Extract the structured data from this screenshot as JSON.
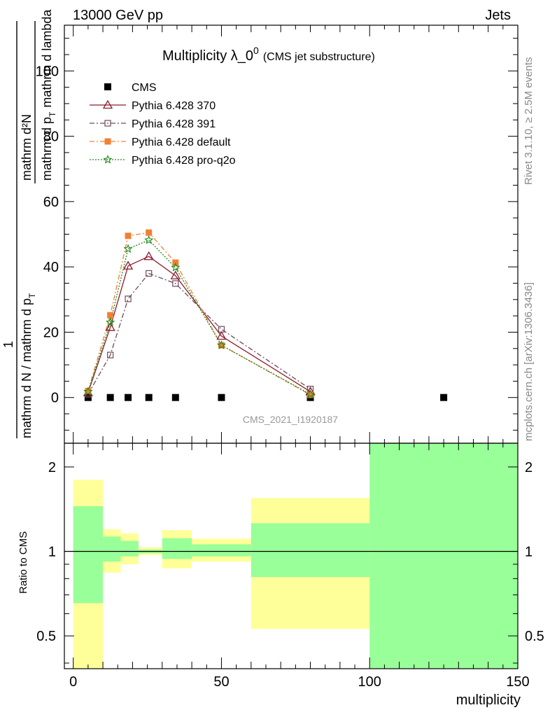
{
  "header": {
    "left": "13000 GeV pp",
    "right": "Jets"
  },
  "side_labels": {
    "rivet": "Rivet 3.1.10, ≥ 2.5M events",
    "mcplots": "mcplots.cern.ch [arXiv:1306.3436]"
  },
  "analysis_tag": "CMS_2021_I1920187",
  "title": {
    "main": "Multiplicity λ_0",
    "sup": "0",
    "sub": "(CMS jet substructure)"
  },
  "ylabel_top": {
    "numerator": "mathrm d²N",
    "line1": "1",
    "line2": "mathrm d N / mathrm d p",
    "line2b": "T",
    "line2c": "mathrm d p",
    "line2d": "T",
    "line2e": "mathrm d lambda"
  },
  "ylabel_bottom": "Ratio to CMS",
  "xlabel": "multiplicity",
  "chart_data": [
    {
      "type": "line",
      "panel": "main",
      "xlim": [
        -3,
        150
      ],
      "ylim": [
        -14,
        114
      ],
      "x_ticks": [
        0,
        50,
        100,
        150
      ],
      "y_ticks": [
        0,
        20,
        40,
        60,
        80,
        100
      ],
      "legend_position": "top-left",
      "series": [
        {
          "name": "CMS",
          "color": "#000000",
          "marker": "filled-square",
          "x": [
            5,
            12.5,
            18.5,
            25.5,
            34.5,
            50,
            80,
            125
          ],
          "y": [
            0,
            0,
            0,
            0,
            0,
            0,
            0,
            0
          ]
        },
        {
          "name": "Pythia 6.428 370",
          "color": "#8b1a2b",
          "marker": "open-triangle",
          "dash": "solid",
          "x": [
            5,
            12.5,
            18.5,
            25.5,
            34.5,
            50,
            80
          ],
          "y": [
            1.5,
            21.5,
            40.3,
            43.2,
            37.3,
            18.8,
            1.8
          ]
        },
        {
          "name": "Pythia 6.428 391",
          "color": "#6e4a5a",
          "marker": "open-square",
          "dash": "dashdot",
          "x": [
            5,
            12.5,
            18.5,
            25.5,
            34.5,
            50,
            80
          ],
          "y": [
            1.0,
            13.0,
            30.2,
            38.0,
            34.9,
            20.9,
            2.6
          ]
        },
        {
          "name": "Pythia 6.428 default",
          "color": "#f28030",
          "marker": "filled-square",
          "dash": "dashdot",
          "x": [
            5,
            12.5,
            18.5,
            25.5,
            34.5,
            50,
            80
          ],
          "y": [
            2.0,
            25.2,
            49.5,
            50.5,
            41.3,
            16.0,
            0.8
          ]
        },
        {
          "name": "Pythia 6.428 pro-q2o",
          "color": "#1a8a1a",
          "marker": "star",
          "dash": "dotted",
          "x": [
            5,
            12.5,
            18.5,
            25.5,
            34.5,
            50,
            80
          ],
          "y": [
            1.8,
            23.0,
            45.5,
            48.2,
            39.8,
            16.0,
            1.0
          ]
        }
      ]
    },
    {
      "type": "area",
      "panel": "ratio",
      "xlim": [
        -3,
        150
      ],
      "ylim": [
        0.382,
        2.43
      ],
      "y_scale": "log",
      "x_ticks": [
        0,
        50,
        100,
        150
      ],
      "y_ticks": [
        0.5,
        1,
        2
      ],
      "reference_line": 1,
      "bands": [
        {
          "x0": 0,
          "x1": 10,
          "yellow": [
            0.3,
            1.8
          ],
          "green": [
            0.654,
            1.45
          ]
        },
        {
          "x0": 10,
          "x1": 16,
          "yellow": [
            0.84,
            1.2
          ],
          "green": [
            0.92,
            1.13
          ]
        },
        {
          "x0": 16,
          "x1": 22,
          "yellow": [
            0.9,
            1.16
          ],
          "green": [
            0.96,
            1.09
          ]
        },
        {
          "x0": 22,
          "x1": 30,
          "yellow": [
            0.97,
            1.035
          ],
          "green": [
            0.985,
            1.015
          ]
        },
        {
          "x0": 30,
          "x1": 40,
          "yellow": [
            0.87,
            1.19
          ],
          "green": [
            0.94,
            1.115
          ]
        },
        {
          "x0": 40,
          "x1": 60,
          "yellow": [
            0.92,
            1.11
          ],
          "green": [
            0.96,
            1.06
          ]
        },
        {
          "x0": 60,
          "x1": 100,
          "yellow": [
            0.53,
            1.55
          ],
          "green": [
            0.81,
            1.26
          ]
        },
        {
          "x0": 100,
          "x1": 150,
          "yellow": [
            0.3,
            2.6
          ],
          "green": [
            0.3,
            2.6
          ]
        }
      ],
      "colors": {
        "yellow": "#ffff99",
        "green": "#99ff99"
      }
    }
  ]
}
